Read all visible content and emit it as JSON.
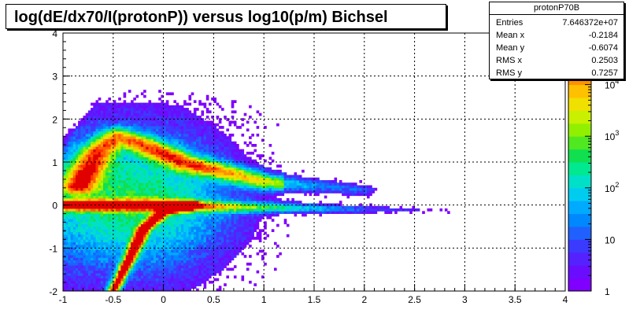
{
  "chart_data": {
    "type": "heatmap",
    "title": "log(dE/dx70/I(protonP)) versus log10(p/m) Bichsel",
    "xlabel": "",
    "ylabel": "",
    "xlim": [
      -1,
      4
    ],
    "ylim": [
      -2,
      4
    ],
    "grid": true,
    "x_ticks": [
      "-1",
      "-0.5",
      "0",
      "0.5",
      "1",
      "1.5",
      "2",
      "2.5",
      "3",
      "3.5",
      "4"
    ],
    "y_ticks": [
      "-2",
      "-1",
      "0",
      "1",
      "2",
      "3",
      "4"
    ],
    "z_scale": "log",
    "z_range": [
      1,
      100000
    ],
    "z_ticks": [
      "1",
      "10",
      "10",
      "10",
      "10"
    ],
    "z_tick_exponents": [
      "",
      "",
      "2",
      "3",
      "4"
    ],
    "z_top_exponent": "5",
    "structures": [
      {
        "name": "proton band",
        "points": [
          [
            -0.5,
            -2.0
          ],
          [
            -0.35,
            -1.3
          ],
          [
            -0.2,
            -0.55
          ],
          [
            0.0,
            -0.15
          ],
          [
            0.3,
            0.0
          ]
        ]
      },
      {
        "name": "flat band",
        "points": [
          [
            -0.95,
            0.0
          ],
          [
            -0.5,
            0.0
          ],
          [
            0.0,
            0.0
          ],
          [
            0.5,
            -0.03
          ],
          [
            1.0,
            -0.05
          ],
          [
            2.0,
            -0.1
          ],
          [
            4.0,
            -0.15
          ]
        ]
      },
      {
        "name": "upper band",
        "points": [
          [
            -0.85,
            0.45
          ],
          [
            -0.65,
            1.25
          ],
          [
            -0.45,
            1.6
          ],
          [
            -0.2,
            1.4
          ],
          [
            0.2,
            1.0
          ],
          [
            1.0,
            0.55
          ],
          [
            2.0,
            0.35
          ]
        ]
      }
    ]
  },
  "stats": {
    "title": "protonP70B",
    "rows": [
      {
        "label": "Entries",
        "value": "7.646372e+07"
      },
      {
        "label": "Mean x",
        "value": "-0.2184"
      },
      {
        "label": "Mean y",
        "value": "-0.6074"
      },
      {
        "label": "RMS x",
        "value": "0.2503"
      },
      {
        "label": "RMS y",
        "value": "0.7257"
      }
    ]
  }
}
